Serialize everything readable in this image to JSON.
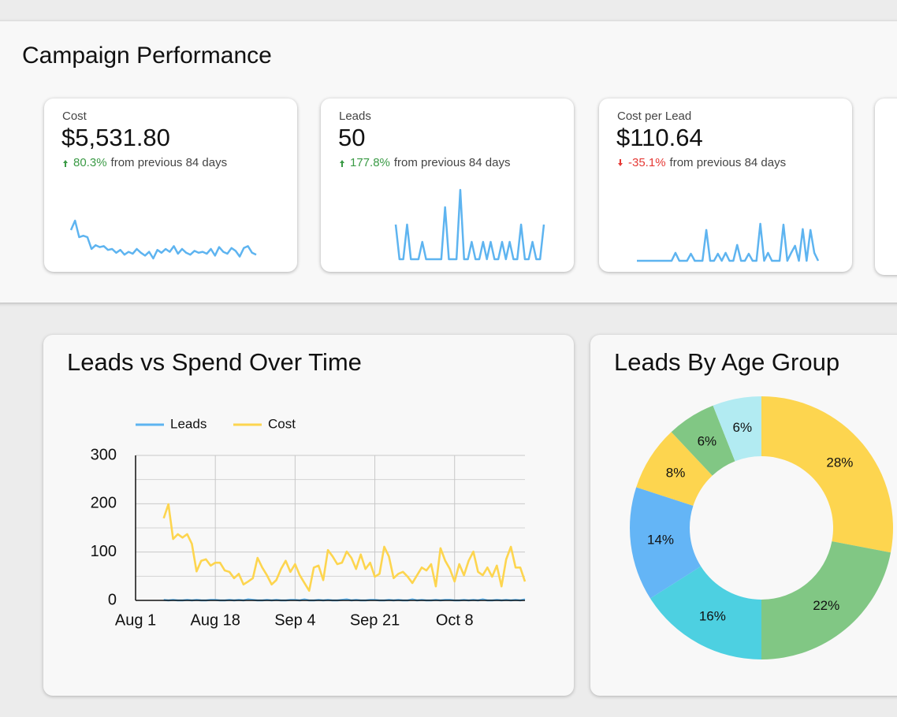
{
  "page_title": "Campaign Performance",
  "kpis": [
    {
      "label": "Cost",
      "value": "$5,531.80",
      "change": "80.3%",
      "change_text": "from previous 84 days",
      "direction": "up",
      "color": "#3a9a45",
      "sparkline": {
        "type": "line",
        "color": "#5eb4f0",
        "values": [
          70,
          90,
          55,
          58,
          55,
          30,
          38,
          34,
          36,
          28,
          30,
          22,
          28,
          18,
          24,
          20,
          30,
          22,
          16,
          24,
          10,
          28,
          22,
          30,
          24,
          36,
          20,
          30,
          22,
          18,
          26,
          22,
          24,
          20,
          30,
          16,
          34,
          24,
          20,
          32,
          26,
          14,
          32,
          36,
          22,
          18
        ]
      }
    },
    {
      "label": "Leads",
      "value": "50",
      "change": "177.8%",
      "change_text": "from previous 84 days",
      "direction": "up",
      "color": "#3a9a45",
      "sparkline": {
        "type": "line",
        "color": "#5eb4f0",
        "values": [
          2,
          0,
          0,
          2,
          0,
          0,
          0,
          1,
          0,
          0,
          0,
          0,
          0,
          3,
          0,
          0,
          0,
          4,
          0,
          0,
          1,
          0,
          0,
          1,
          0,
          1,
          0,
          0,
          1,
          0,
          1,
          0,
          0,
          2,
          0,
          0,
          1,
          0,
          0,
          2
        ]
      }
    },
    {
      "label": "Cost per Lead",
      "value": "$110.64",
      "change": "-35.1%",
      "change_text": "from previous 84 days",
      "direction": "down",
      "color": "#e53935",
      "sparkline": {
        "type": "line",
        "color": "#5eb4f0",
        "values": [
          0,
          0,
          0,
          0,
          0,
          0,
          0,
          0,
          0,
          0,
          90,
          0,
          0,
          0,
          80,
          0,
          0,
          0,
          350,
          0,
          0,
          80,
          0,
          90,
          0,
          0,
          180,
          0,
          0,
          80,
          0,
          0,
          420,
          0,
          90,
          0,
          0,
          0,
          410,
          0,
          90,
          170,
          0,
          360,
          0,
          350,
          90,
          0
        ]
      }
    }
  ],
  "chart_data": [
    {
      "type": "line",
      "title": "Leads vs Spend Over Time",
      "categories": [
        "Aug 1",
        null,
        null,
        null,
        null,
        null,
        null,
        null,
        null,
        null,
        null,
        null,
        null,
        null,
        null,
        null,
        null,
        "Aug 18",
        null,
        null,
        null,
        null,
        null,
        null,
        null,
        null,
        null,
        null,
        null,
        null,
        null,
        null,
        null,
        null,
        "Sep 4",
        null,
        null,
        null,
        null,
        null,
        null,
        null,
        null,
        null,
        null,
        null,
        null,
        null,
        null,
        null,
        null,
        "Sep 21",
        null,
        null,
        null,
        null,
        null,
        null,
        null,
        null,
        null,
        null,
        null,
        null,
        null,
        null,
        null,
        null,
        "Oct 8",
        null,
        null,
        null,
        null,
        null,
        null,
        null,
        null,
        null,
        null,
        null,
        null,
        null,
        null,
        null
      ],
      "series": [
        {
          "name": "Leads",
          "color": "#5eb4f0",
          "values": [
            null,
            null,
            null,
            null,
            null,
            null,
            1,
            0,
            1,
            0,
            0,
            1,
            0,
            1,
            0,
            0,
            1,
            1,
            0,
            0,
            1,
            0,
            1,
            0,
            2,
            1,
            0,
            0,
            1,
            0,
            1,
            0,
            0,
            1,
            1,
            0,
            2,
            0,
            0,
            1,
            0,
            1,
            0,
            0,
            1,
            2,
            0,
            1,
            0,
            0,
            1,
            1,
            0,
            0,
            1,
            0,
            1,
            0,
            0,
            2,
            0,
            1,
            0,
            0,
            1,
            0,
            1,
            1,
            0,
            0,
            1,
            0,
            1,
            0,
            2,
            0,
            0,
            1,
            0,
            1,
            0,
            1,
            0,
            2
          ]
        },
        {
          "name": "Cost",
          "color": "#fdd54f",
          "values": [
            null,
            null,
            null,
            null,
            null,
            null,
            170,
            199,
            127,
            137,
            130,
            137,
            117,
            60,
            82,
            85,
            72,
            78,
            78,
            62,
            59,
            46,
            55,
            33,
            39,
            46,
            88,
            68,
            52,
            33,
            42,
            65,
            82,
            59,
            75,
            52,
            36,
            20,
            68,
            72,
            42,
            104,
            91,
            75,
            78,
            101,
            88,
            65,
            95,
            65,
            78,
            49,
            55,
            111,
            91,
            46,
            55,
            59,
            49,
            36,
            52,
            68,
            62,
            75,
            29,
            108,
            82,
            65,
            39,
            75,
            52,
            82,
            101,
            59,
            52,
            68,
            49,
            72,
            29,
            85,
            111,
            68,
            68,
            39
          ]
        }
      ],
      "ylim": [
        0,
        300
      ],
      "yticks": [
        0,
        100,
        200,
        300
      ],
      "y_minor_ticks": [
        50,
        150,
        250
      ],
      "grid": true,
      "legend": "top"
    },
    {
      "type": "donut",
      "title": "Leads By Age Group",
      "values": [
        28,
        22,
        16,
        14,
        8,
        6,
        6
      ],
      "value_labels": [
        "28%",
        "22%",
        "16%",
        "14%",
        "8%",
        "6%",
        "6%"
      ],
      "colors": [
        "#fdd54f",
        "#81c784",
        "#4dd0e1",
        "#64b5f6",
        "#fdd54f",
        "#81c784",
        "#b2ebf2"
      ]
    }
  ]
}
